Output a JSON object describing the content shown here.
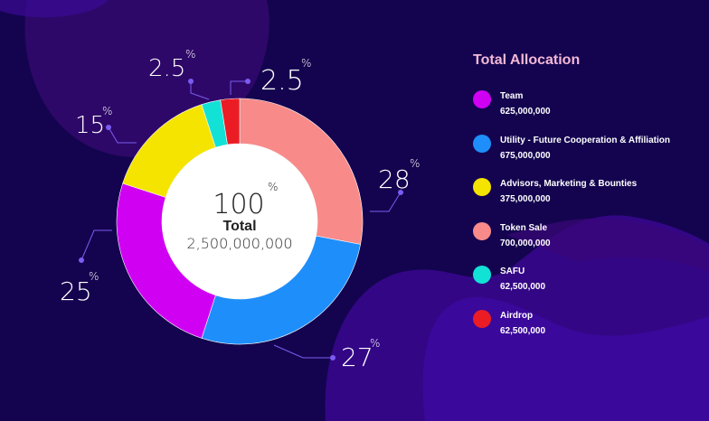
{
  "colors": {
    "background": "#14044f",
    "leader_line": "#7b5cf0",
    "legend_title": "#f4b8d6"
  },
  "chart_data": {
    "type": "pie",
    "donut": true,
    "center": {
      "value": "100",
      "unit": "%",
      "label": "Total",
      "amount": "2,500,000,000"
    },
    "legend_title": "Total Allocation",
    "legend_placement": "right",
    "series": [
      {
        "name": "Token Sale",
        "value": 28,
        "amount": "700,000,000",
        "color": "#f88a8a"
      },
      {
        "name": "Utility - Future Cooperation & Affiliation",
        "value": 27,
        "amount": "675,000,000",
        "color": "#1e8efb"
      },
      {
        "name": "Team",
        "value": 25,
        "amount": "625,000,000",
        "color": "#d000f3"
      },
      {
        "name": "Advisors, Marketing & Bounties",
        "value": 15,
        "amount": "375,000,000",
        "color": "#f4e400"
      },
      {
        "name": "SAFU",
        "value": 2.5,
        "amount": "62,500,000",
        "color": "#12e1d6"
      },
      {
        "name": "Airdrop",
        "value": 2.5,
        "amount": "62,500,000",
        "color": "#ec1c24"
      }
    ],
    "legend_order": [
      2,
      1,
      3,
      0,
      4,
      5
    ],
    "percent_labels": [
      "28",
      "27",
      "25",
      "15",
      "2.5",
      "2.5"
    ],
    "percent_sign": "%"
  }
}
